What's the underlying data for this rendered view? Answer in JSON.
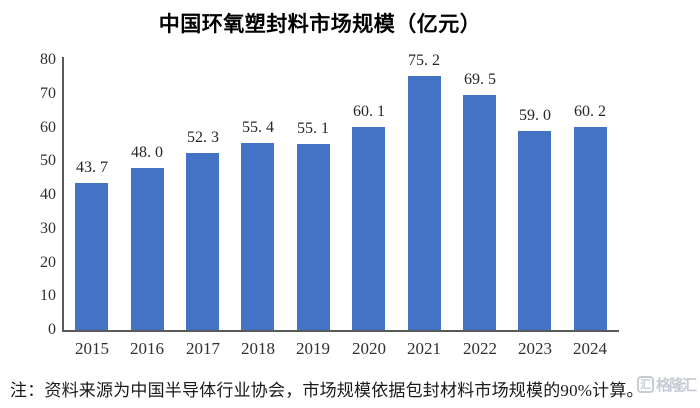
{
  "title": "中国环氧塑封料市场规模（亿元）",
  "note": "注：资料来源为中国半导体行业协会，市场规模依据包封材料市场规模的90%计算。",
  "watermark": {
    "logo_glyph": "汇",
    "text": "格隆汇"
  },
  "colors": {
    "bar": "#4472C4",
    "axis": "#595959",
    "tick_text": "#303030",
    "title_text": "#000000",
    "watermark": "#C6CCD4"
  },
  "chart_data": {
    "type": "bar",
    "title": "中国环氧塑封料市场规模（亿元）",
    "categories": [
      "2015",
      "2016",
      "2017",
      "2018",
      "2019",
      "2020",
      "2021",
      "2022",
      "2023",
      "2024"
    ],
    "values": [
      43.7,
      48.0,
      52.3,
      55.4,
      55.1,
      60.1,
      75.2,
      69.5,
      59.0,
      60.2
    ],
    "value_labels": [
      "43. 7",
      "48. 0",
      "52. 3",
      "55. 4",
      "55. 1",
      "60. 1",
      "75. 2",
      "69. 5",
      "59. 0",
      "60. 2"
    ],
    "xlabel": "",
    "ylabel": "",
    "ylim": [
      0,
      80
    ],
    "yticks": [
      0,
      10,
      20,
      30,
      40,
      50,
      60,
      70,
      80
    ],
    "grid": false,
    "legend": null,
    "bar_color": "#4472C4"
  }
}
